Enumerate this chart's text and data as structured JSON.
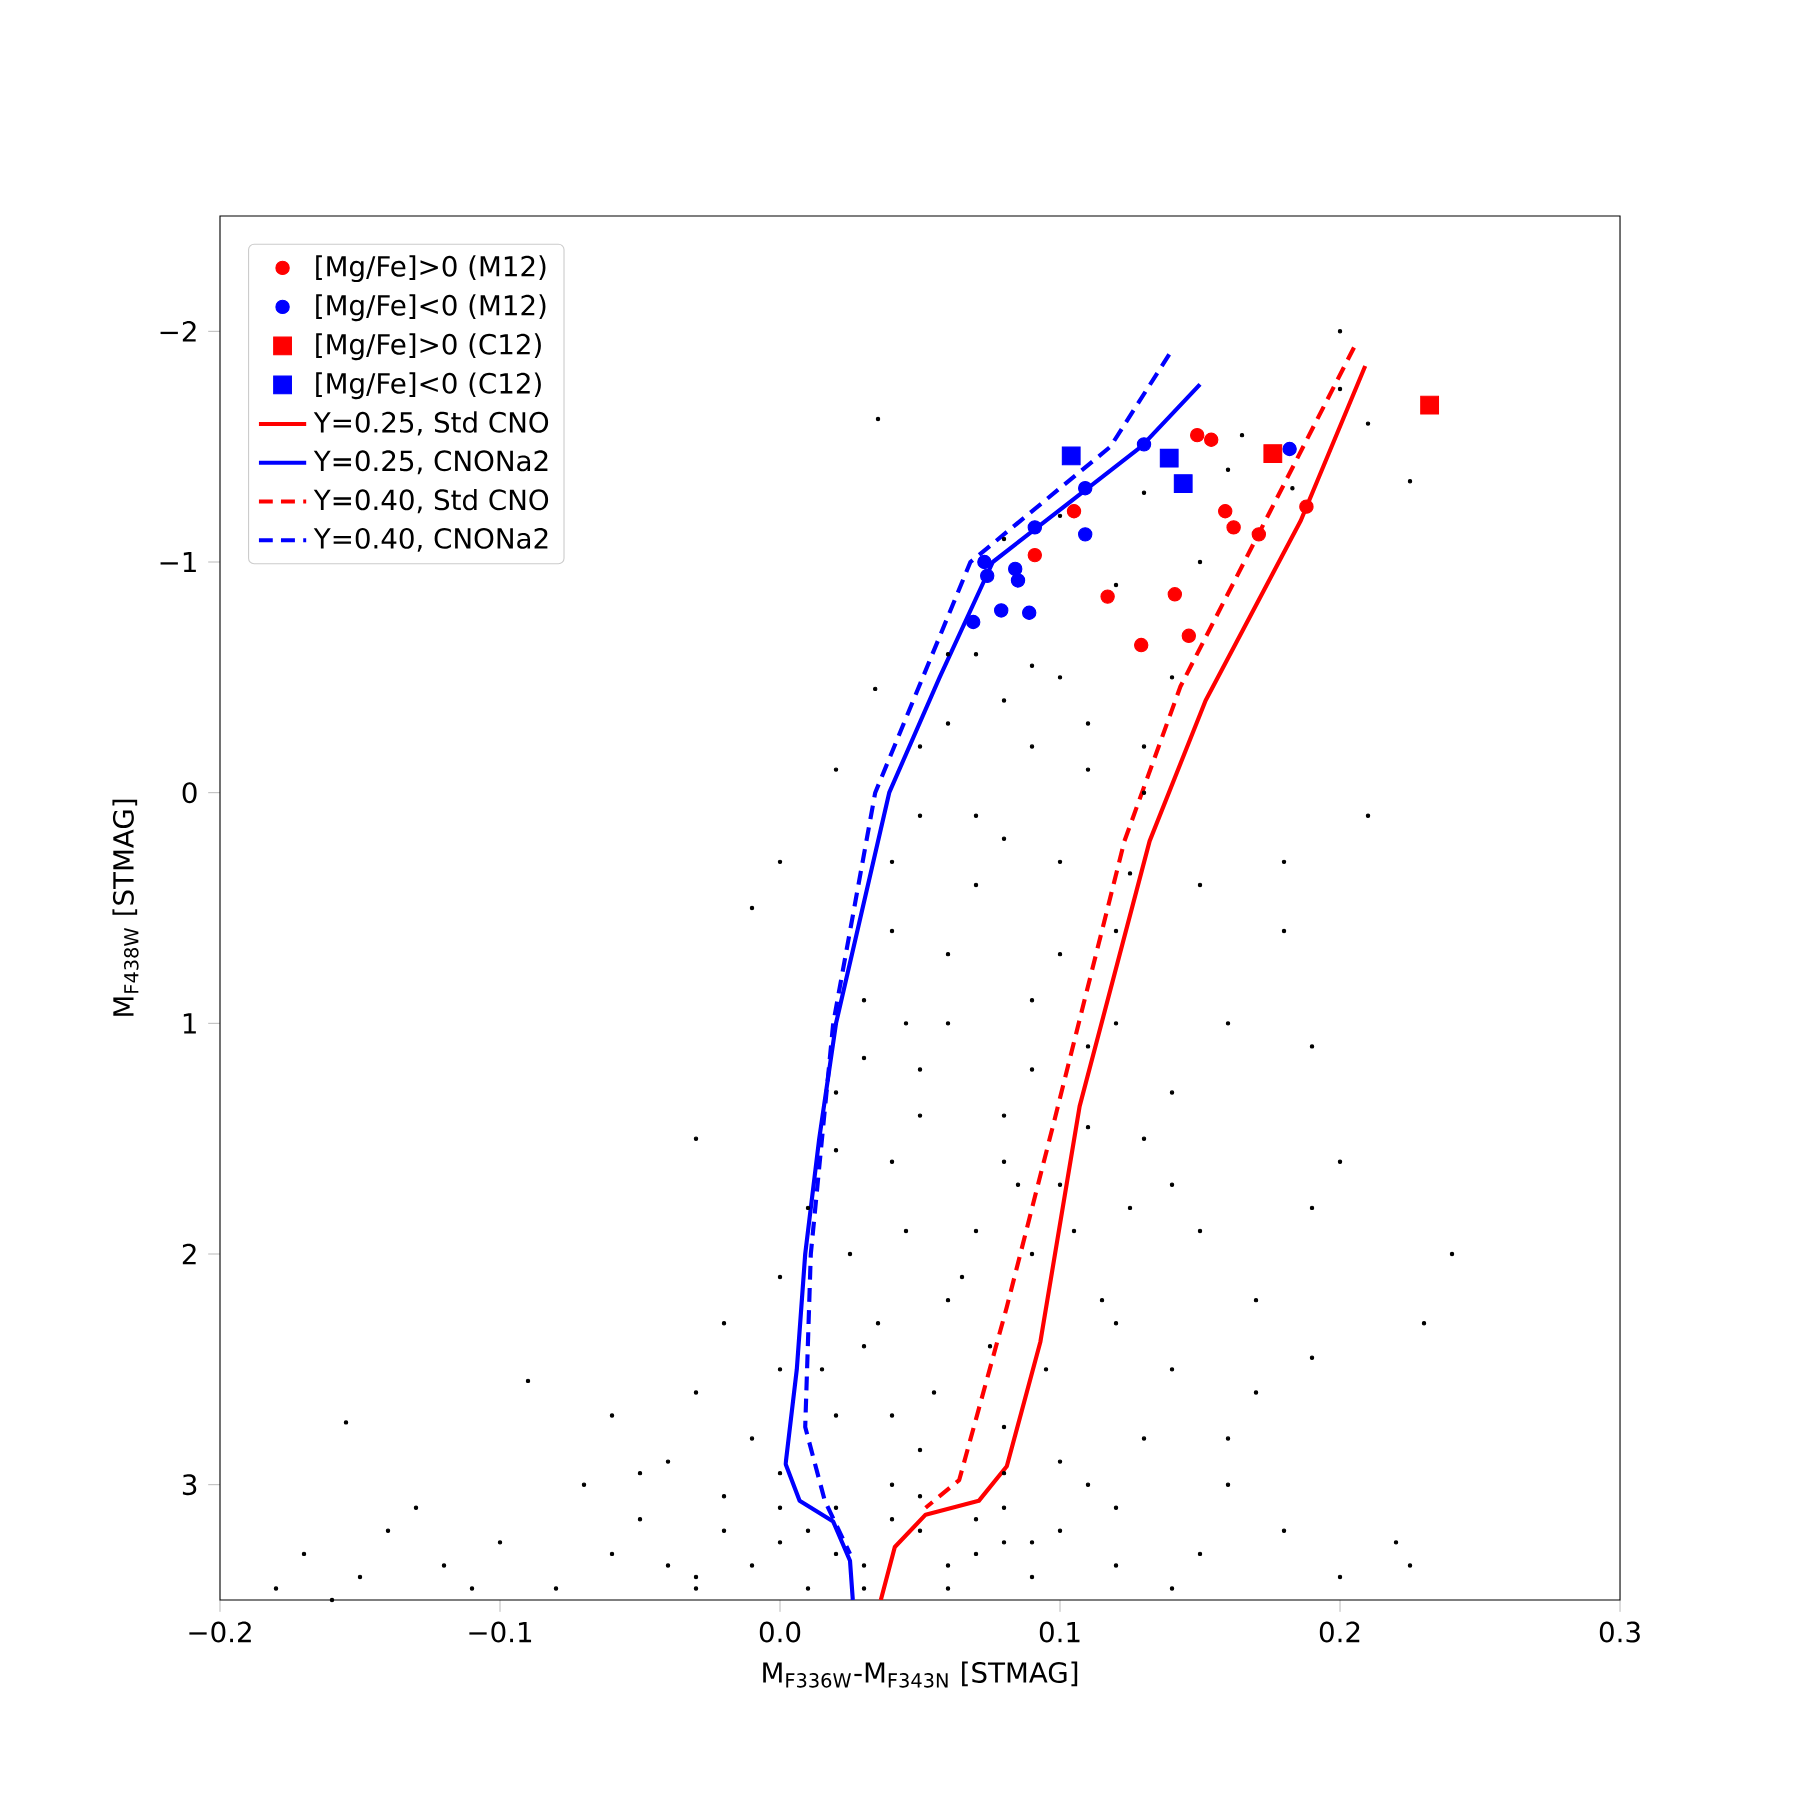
{
  "chart_data": {
    "type": "scatter",
    "xlabel": "M$_{F336W}$-M$_{F343N}$ [STMAG]",
    "ylabel": "M$_{F438W}$ [STMAG]",
    "xlim": [
      -0.2,
      0.3
    ],
    "ylim": [
      3.5,
      -2.5
    ],
    "xticks": [
      {
        "value": -0.2,
        "label": "−0.2"
      },
      {
        "value": -0.1,
        "label": "−0.1"
      },
      {
        "value": 0,
        "label": "0.0"
      },
      {
        "value": 0.1,
        "label": "0.1"
      },
      {
        "value": 0.2,
        "label": "0.2"
      },
      {
        "value": 0.3,
        "label": "0.3"
      }
    ],
    "yticks": [
      {
        "value": -2,
        "label": "−2"
      },
      {
        "value": -1,
        "label": "−1"
      },
      0,
      1,
      2,
      3
    ],
    "legend": "top left",
    "series": [
      {
        "color": "#000000",
        "marker": "circle",
        "x": [
          -0.04,
          -0.02,
          0.0,
          0.02,
          0.04,
          0.06,
          0.08,
          -0.03,
          -0.01,
          0.01,
          0.03,
          0.05,
          0.07,
          0.09,
          -0.05,
          0.0,
          0.04,
          0.08,
          0.12,
          0.015,
          0.035,
          0.055,
          0.075,
          0.095,
          0.115,
          0.025,
          0.045,
          0.065,
          0.085,
          0.105,
          0.125,
          0.02,
          0.05,
          0.08,
          0.11,
          0.14,
          0.03,
          0.06,
          0.09,
          0.12,
          0.04,
          0.07,
          0.1,
          0.125,
          0.05,
          0.08,
          0.11,
          0.06,
          0.09,
          0.07,
          0.1,
          -0.11,
          -0.14,
          0.15,
          0.17,
          -0.16,
          0.16,
          0.19,
          0.13,
          0.0,
          -0.18,
          -0.15,
          -0.17,
          -0.12,
          -0.1,
          -0.08,
          -0.06,
          -0.05,
          -0.03,
          -0.02,
          0.0,
          0.01,
          0.02,
          0.03,
          0.04,
          0.05,
          0.06,
          0.07,
          0.08,
          0.09,
          0.1,
          0.12,
          0.14,
          0.11,
          -0.04,
          -0.07,
          -0.13,
          -0.155,
          -0.09,
          -0.06,
          -0.03,
          -0.01,
          0.02,
          0.05,
          0.08,
          0.1,
          0.13,
          0.16,
          0.18,
          0.2,
          0.22,
          0.225,
          -0.02,
          0.0,
          0.03,
          0.06,
          0.09,
          0.12,
          0.14,
          0.17,
          0.19,
          0.01,
          0.04,
          0.07,
          0.1,
          0.13,
          0.15,
          0.2,
          0.02,
          0.05,
          0.08,
          0.11,
          0.14,
          0.16,
          0.18,
          0.03,
          0.06,
          0.09,
          0.12,
          0.15,
          0.04,
          0.07,
          0.1,
          0.13,
          0.05,
          0.08,
          0.11,
          0.14,
          0.06,
          0.09,
          0.12,
          0.15,
          0.1,
          0.13,
          0.16,
          0.2,
          0.21,
          0.165,
          0.183,
          0.034,
          0.02,
          0.0,
          -0.01,
          0.035,
          0.2,
          0.225,
          0.21,
          0.19,
          -0.03,
          0.24,
          0.23,
          0.045,
          0.08,
          0.18
        ],
        "values": [
          3.35,
          3.2,
          3.1,
          3.3,
          3.15,
          3.35,
          3.25,
          3.45,
          3.35,
          3.2,
          3.45,
          3.05,
          3.15,
          3.25,
          2.95,
          2.95,
          2.7,
          2.95,
          3.1,
          2.5,
          2.3,
          2.6,
          2.4,
          2.5,
          2.2,
          2.0,
          1.9,
          2.1,
          1.7,
          1.9,
          1.8,
          1.55,
          1.4,
          1.6,
          1.45,
          1.7,
          1.15,
          1.0,
          1.2,
          1.0,
          0.6,
          0.4,
          0.7,
          0.35,
          0.1,
          0.2,
          -0.1,
          -0.3,
          -0.2,
          -0.6,
          -0.5,
          3.45,
          3.2,
          3.3,
          2.6,
          3.5,
          2.8,
          2.45,
          -0.2,
          2.5,
          3.45,
          3.4,
          3.3,
          3.35,
          3.25,
          3.45,
          3.3,
          3.15,
          3.4,
          3.05,
          3.25,
          3.45,
          3.1,
          3.35,
          3.0,
          3.2,
          3.45,
          3.3,
          3.1,
          3.4,
          3.2,
          3.35,
          3.45,
          3.0,
          2.9,
          3.0,
          3.1,
          2.73,
          2.55,
          2.7,
          2.6,
          2.8,
          2.7,
          2.85,
          2.75,
          2.9,
          2.8,
          3.0,
          3.2,
          3.4,
          3.25,
          3.35,
          2.3,
          2.1,
          2.4,
          2.2,
          2.0,
          2.3,
          2.5,
          2.2,
          1.8,
          1.8,
          1.6,
          1.9,
          1.7,
          1.5,
          1.9,
          1.6,
          1.3,
          1.2,
          1.4,
          1.1,
          1.3,
          1.0,
          0.6,
          0.9,
          0.7,
          0.9,
          0.6,
          0.4,
          0.3,
          0.1,
          0.3,
          0.0,
          -0.2,
          -0.4,
          -0.3,
          -0.5,
          -0.6,
          -0.55,
          -0.9,
          -1.0,
          -1.2,
          -1.3,
          -1.4,
          -1.75,
          -1.6,
          -1.55,
          -1.32,
          -0.45,
          -0.1,
          0.3,
          0.5,
          -1.62,
          -2.0,
          -1.35,
          0.1,
          1.1,
          1.5,
          2.0,
          2.3,
          1.0,
          -1.1,
          0.3
        ]
      },
      {
        "name": "[Mg/Fe]>0 (M12)",
        "color": "#ff0000",
        "marker": "circle",
        "x": [
          0.149,
          0.154,
          0.105,
          0.091,
          0.159,
          0.162,
          0.171,
          0.188,
          0.117,
          0.141,
          0.146,
          0.129
        ],
        "values": [
          -1.55,
          -1.53,
          -1.22,
          -1.03,
          -1.22,
          -1.15,
          -1.12,
          -1.24,
          -0.85,
          -0.86,
          -0.68,
          -0.64
        ]
      },
      {
        "name": "[Mg/Fe]<0 (M12)",
        "color": "#0000ff",
        "marker": "circle",
        "x": [
          0.13,
          0.109,
          0.109,
          0.091,
          0.073,
          0.074,
          0.084,
          0.085,
          0.079,
          0.089,
          0.069,
          0.182
        ],
        "values": [
          -1.51,
          -1.32,
          -1.12,
          -1.15,
          -1.0,
          -0.94,
          -0.97,
          -0.92,
          -0.79,
          -0.78,
          -0.74,
          -1.49
        ]
      },
      {
        "name": "[Mg/Fe]>0 (C12)",
        "color": "#ff0000",
        "marker": "square",
        "x": [
          0.176,
          0.232
        ],
        "values": [
          -1.47,
          -1.68
        ]
      },
      {
        "name": "[Mg/Fe]<0 (C12)",
        "color": "#0000ff",
        "marker": "square",
        "x": [
          0.104,
          0.139,
          0.144
        ],
        "values": [
          -1.46,
          -1.45,
          -1.34
        ]
      },
      {
        "type": "line",
        "name": "Y=0.25, Std CNO",
        "color": "#ff0000",
        "line_style": "solid",
        "x": [
          0.209,
          0.186,
          0.152,
          0.132,
          0.107,
          0.093,
          0.081,
          0.071,
          0.052,
          0.041,
          0.036
        ],
        "values": [
          -1.85,
          -1.18,
          -0.4,
          0.21,
          1.36,
          2.38,
          2.92,
          3.07,
          3.13,
          3.27,
          3.5
        ]
      },
      {
        "type": "line",
        "name": "Y=0.25, CNONa2",
        "color": "#0000ff",
        "line_style": "solid",
        "x": [
          0.15,
          0.129,
          0.076,
          0.057,
          0.039,
          0.02,
          0.014,
          0.009,
          0.006,
          0.002,
          0.007,
          0.019,
          0.025,
          0.026
        ],
        "values": [
          -1.77,
          -1.5,
          -1.0,
          -0.5,
          0.0,
          1.0,
          1.5,
          2.0,
          2.5,
          2.91,
          3.07,
          3.16,
          3.33,
          3.5
        ]
      },
      {
        "type": "line",
        "name": "Y=0.40, Std CNO",
        "color": "#ff0000",
        "line_style": "dashed",
        "x": [
          0.205,
          0.143,
          0.123,
          0.098,
          0.081,
          0.064,
          0.052
        ],
        "values": [
          -1.93,
          -0.46,
          0.21,
          1.42,
          2.23,
          2.98,
          3.1
        ]
      },
      {
        "type": "line",
        "name": "Y=0.40, CNONa2",
        "color": "#0000ff",
        "line_style": "dashed",
        "x": [
          0.139,
          0.118,
          0.068,
          0.034,
          0.019,
          0.011,
          0.009,
          0.016,
          0.025
        ],
        "values": [
          -1.9,
          -1.5,
          -1.0,
          0.0,
          1.0,
          2.0,
          2.75,
          3.07,
          3.3
        ]
      }
    ]
  }
}
